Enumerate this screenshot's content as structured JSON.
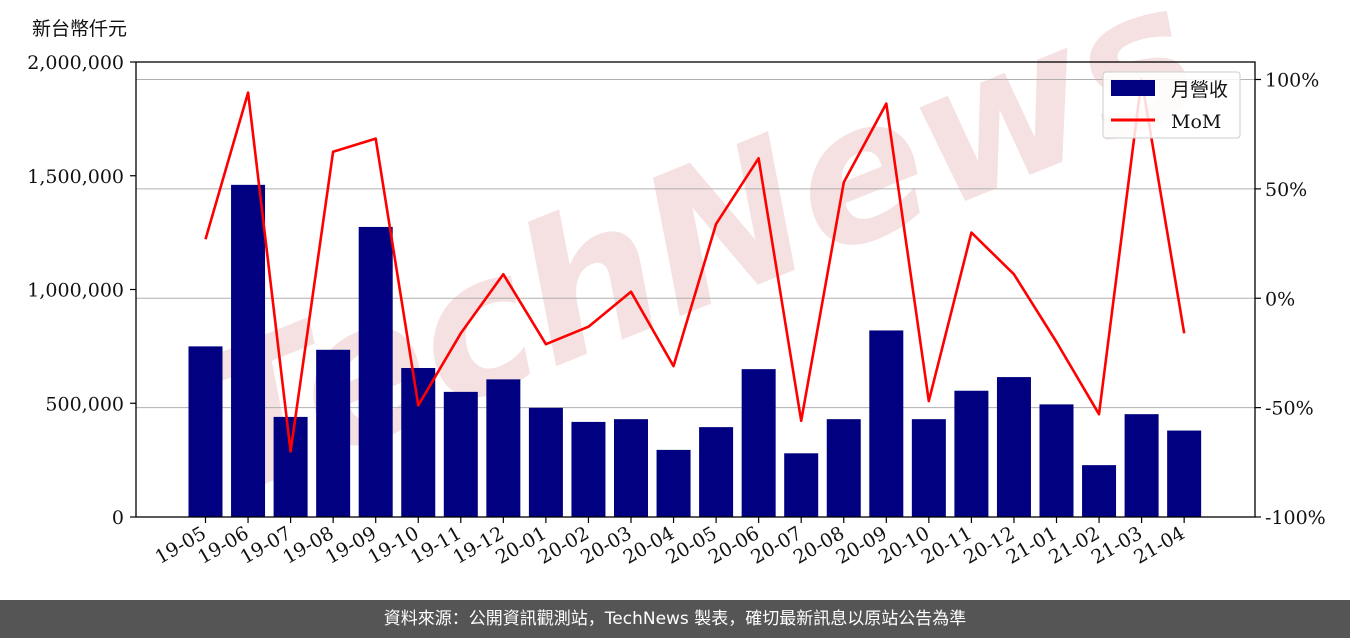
{
  "unit_label": "新台幣仟元",
  "footer": "資料來源：公開資訊觀測站，TechNews 製表，確切最新訊息以原站公告為準",
  "watermark": "TechNews",
  "colors": {
    "bar": "#000080",
    "line": "#ff0000",
    "grid": "#b0b0b0",
    "footer_bg": "#555555",
    "watermark": "#f2d7d7"
  },
  "chart_data": {
    "type": "bar",
    "categories": [
      "19-05",
      "19-06",
      "19-07",
      "19-08",
      "19-09",
      "19-10",
      "19-11",
      "19-12",
      "20-01",
      "20-02",
      "20-03",
      "20-04",
      "20-05",
      "20-06",
      "20-07",
      "20-08",
      "20-09",
      "20-10",
      "20-11",
      "20-12",
      "21-01",
      "21-02",
      "21-03",
      "21-04"
    ],
    "series": [
      {
        "name": "月營收",
        "type": "bar",
        "axis": "left",
        "values": [
          750000,
          1460000,
          440000,
          735000,
          1275000,
          655000,
          550000,
          605000,
          480000,
          418000,
          430000,
          295000,
          395000,
          650000,
          280000,
          430000,
          820000,
          430000,
          555000,
          615000,
          495000,
          228000,
          452000,
          380000
        ]
      },
      {
        "name": "MoM",
        "type": "line",
        "axis": "right",
        "values": [
          27,
          94,
          -70,
          67,
          73,
          -49,
          -16,
          11,
          -21,
          -13,
          3,
          -31,
          34,
          64,
          -56,
          53,
          89,
          -47,
          30,
          11,
          -20,
          -53,
          100,
          -16
        ]
      }
    ],
    "y_left": {
      "ylim": [
        0,
        2000000
      ],
      "ticks": [
        0,
        500000,
        1000000,
        1500000,
        2000000
      ],
      "tick_labels": [
        "0",
        "500,000",
        "1,000,000",
        "1,500,000",
        "2,000,000"
      ]
    },
    "y_right": {
      "ylim": [
        -100,
        108
      ],
      "ticks": [
        -100,
        -50,
        0,
        50,
        100
      ],
      "tick_labels": [
        "-100%",
        "-50%",
        "0%",
        "50%",
        "100%"
      ]
    },
    "grid": "horizontal-right-axis",
    "legend": {
      "position": "top-right",
      "entries": [
        "月營收",
        "MoM"
      ]
    }
  }
}
